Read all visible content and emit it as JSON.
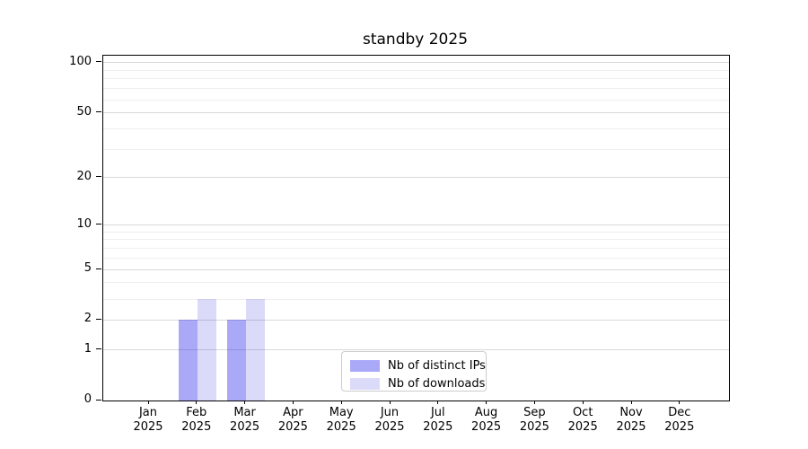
{
  "chart_data": {
    "type": "bar",
    "title": "standby 2025",
    "xlabel": "",
    "ylabel": "",
    "yscale": "log10(1+v)",
    "ylim": [
      0,
      110
    ],
    "grid": true,
    "legend_position": "lower-center",
    "categories": [
      "Jan",
      "Feb",
      "Mar",
      "Apr",
      "May",
      "Jun",
      "Jul",
      "Aug",
      "Sep",
      "Oct",
      "Nov",
      "Dec"
    ],
    "x_year_label": "2025",
    "yticks": [
      0,
      1,
      2,
      5,
      10,
      20,
      50,
      100
    ],
    "minor_yticks": [
      3,
      4,
      6,
      7,
      8,
      9,
      30,
      40,
      60,
      70,
      80,
      90
    ],
    "series": [
      {
        "name": "Nb of distinct IPs",
        "color": "rgba(10, 10, 235, 0.35)",
        "color_hex_on_white": "#a9a9f8",
        "values": [
          0,
          2,
          2,
          0,
          0,
          0,
          0,
          0,
          0,
          0,
          0,
          0
        ]
      },
      {
        "name": "Nb of downloads",
        "color": "rgba(12, 12, 212, 0.15)",
        "color_hex_on_white": "#dbdbf8",
        "values": [
          0,
          3,
          3,
          0,
          0,
          0,
          0,
          0,
          0,
          0,
          0,
          0
        ]
      }
    ]
  },
  "colors": {
    "axis": "#000000",
    "major_grid": "#d9d9d9",
    "minor_grid": "#efefef",
    "legend_border": "#cccccc",
    "background": "#ffffff"
  }
}
